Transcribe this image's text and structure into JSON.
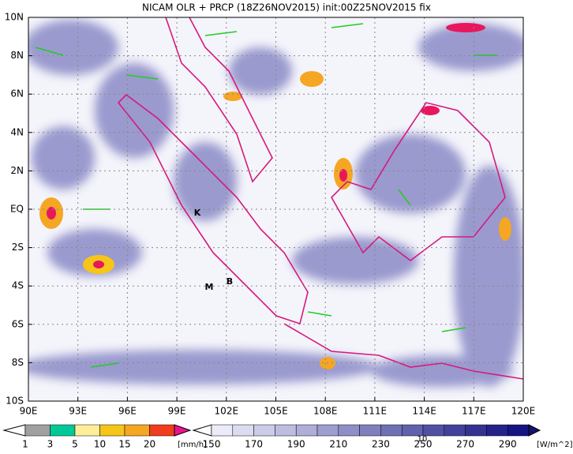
{
  "title": "NICAM OLR + PRCP (18Z26NOV2015) init:00Z25NOV2015 fix",
  "map": {
    "lat_labels": [
      "10N",
      "8N",
      "6N",
      "4N",
      "2N",
      "EQ",
      "2S",
      "4S",
      "6S",
      "8S",
      "10S"
    ],
    "lon_labels": [
      "90E",
      "93E",
      "96E",
      "99E",
      "102E",
      "105E",
      "108E",
      "111E",
      "114E",
      "117E",
      "120E"
    ],
    "markers": [
      "K",
      "M",
      "B"
    ]
  },
  "precip_legend": {
    "labels": [
      "1",
      "3",
      "5",
      "10",
      "15",
      "20"
    ],
    "unit": "[mm/h]"
  },
  "olr_legend": {
    "labels": [
      "150",
      "170",
      "190",
      "210",
      "230",
      "250",
      "270",
      "290"
    ],
    "unit": "[W/m^2]"
  },
  "vector_reference": "10"
}
